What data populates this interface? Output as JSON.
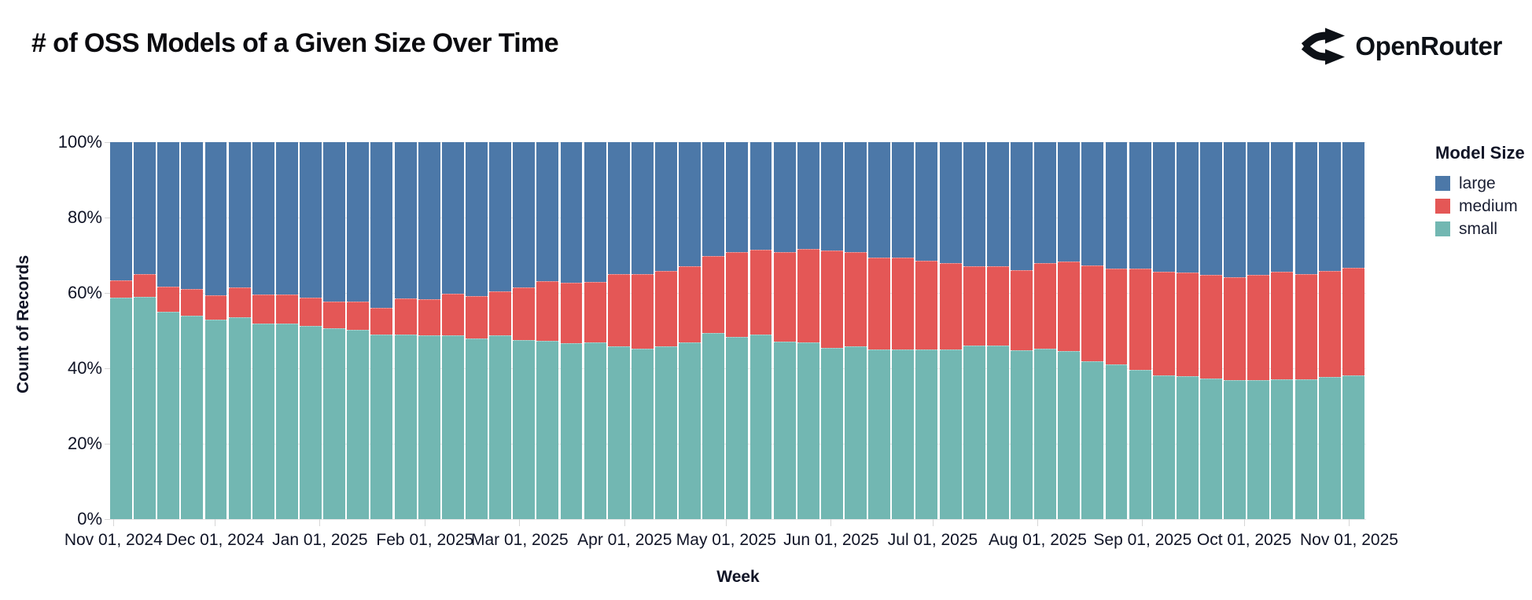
{
  "header": {
    "title": "# of OSS Models of a Given Size Over Time",
    "brand": "OpenRouter"
  },
  "chart_data": {
    "type": "bar",
    "stacked": true,
    "normalized_percent": true,
    "title": "# of OSS Models of a Given Size Over Time",
    "xlabel": "Week",
    "ylabel": "Count of Records",
    "ylim": [
      0,
      100
    ],
    "legend_title": "Model Size",
    "legend_position": "right",
    "grid": true,
    "n_weeks": 53,
    "week_start": "2024-10-31",
    "x_domain": [
      "2024-10-31",
      "2025-11-06"
    ],
    "y_ticks": [
      {
        "label": "100%",
        "value": 100
      },
      {
        "label": "80%",
        "value": 80
      },
      {
        "label": "60%",
        "value": 60
      },
      {
        "label": "40%",
        "value": 40
      },
      {
        "label": "20%",
        "value": 20
      },
      {
        "label": "0%",
        "value": 0
      }
    ],
    "month_ticks": [
      {
        "label": "Nov 01, 2024",
        "date": "2024-11-01"
      },
      {
        "label": "Dec 01, 2024",
        "date": "2024-12-01"
      },
      {
        "label": "Jan 01, 2025",
        "date": "2025-01-01"
      },
      {
        "label": "Feb 01, 2025",
        "date": "2025-02-01"
      },
      {
        "label": "Mar 01, 2025",
        "date": "2025-03-01"
      },
      {
        "label": "Apr 01, 2025",
        "date": "2025-04-01"
      },
      {
        "label": "May 01, 2025",
        "date": "2025-05-01"
      },
      {
        "label": "Jun 01, 2025",
        "date": "2025-06-01"
      },
      {
        "label": "Jul 01, 2025",
        "date": "2025-07-01"
      },
      {
        "label": "Aug 01, 2025",
        "date": "2025-08-01"
      },
      {
        "label": "Sep 01, 2025",
        "date": "2025-09-01"
      },
      {
        "label": "Oct 01, 2025",
        "date": "2025-10-01"
      },
      {
        "label": "Nov 01, 2025",
        "date": "2025-11-01"
      }
    ],
    "series": [
      {
        "name": "large",
        "color": "#4c78a8",
        "values": [
          36.6,
          34.9,
          38.3,
          39.0,
          40.6,
          38.5,
          40.4,
          40.4,
          41.2,
          42.3,
          42.3,
          43.9,
          41.5,
          41.7,
          40.3,
          40.8,
          39.5,
          38.5,
          36.9,
          37.3,
          37.1,
          35.0,
          35.0,
          34.2,
          32.9,
          30.3,
          29.2,
          28.6,
          29.1,
          28.4,
          28.8,
          29.1,
          30.7,
          30.7,
          31.4,
          32.1,
          33.0,
          33.0,
          34.0,
          32.1,
          31.6,
          32.8,
          33.5,
          33.5,
          34.4,
          34.5,
          35.2,
          35.9,
          35.2,
          34.3,
          34.9,
          34.2,
          33.4
        ]
      },
      {
        "name": "medium",
        "color": "#e45756",
        "values": [
          4.6,
          6.1,
          6.7,
          7.1,
          6.4,
          8.0,
          7.7,
          7.8,
          7.5,
          7.0,
          7.5,
          7.1,
          9.5,
          9.5,
          11.1,
          11.3,
          11.7,
          13.9,
          15.8,
          16.0,
          16.1,
          19.1,
          19.7,
          20.1,
          20.2,
          20.5,
          22.5,
          22.6,
          23.8,
          24.7,
          25.9,
          25.1,
          24.4,
          24.4,
          23.5,
          23.0,
          21.0,
          21.1,
          21.2,
          22.7,
          23.7,
          25.5,
          25.5,
          26.9,
          27.4,
          27.5,
          27.4,
          27.3,
          27.9,
          28.5,
          27.9,
          28.1,
          28.6
        ]
      },
      {
        "name": "small",
        "color": "#72b7b2",
        "values": [
          58.8,
          59.0,
          55.0,
          53.9,
          53.0,
          53.5,
          51.9,
          51.8,
          51.3,
          50.7,
          50.2,
          49.0,
          49.0,
          48.8,
          48.6,
          47.9,
          48.8,
          47.6,
          47.3,
          46.7,
          46.8,
          45.9,
          45.3,
          45.7,
          46.9,
          49.2,
          48.3,
          48.8,
          47.1,
          46.9,
          45.3,
          45.8,
          44.9,
          44.9,
          45.1,
          44.9,
          46.0,
          45.9,
          44.8,
          45.2,
          44.7,
          41.7,
          41.0,
          39.6,
          38.2,
          38.0,
          37.4,
          36.8,
          36.9,
          37.2,
          37.2,
          37.7,
          38.0
        ]
      }
    ]
  }
}
